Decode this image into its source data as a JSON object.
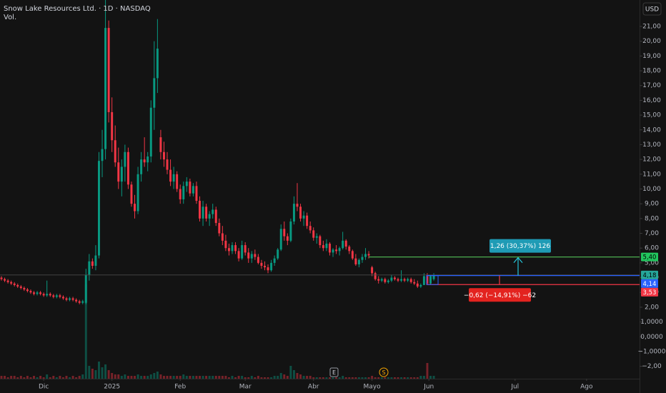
{
  "chart_data": {
    "type": "candlestick",
    "title": "Snow Lake Resources Ltd. · 1D · NASDAQ",
    "volume_label": "Vol.",
    "currency": "USD",
    "up_color": "#089981",
    "down_color": "#f23645",
    "grid": false,
    "xlim": [
      -0.44,
      196.3
    ],
    "xticks": [
      {
        "value": 13,
        "label": "Dic"
      },
      {
        "value": 34,
        "label": "2025"
      },
      {
        "value": 55,
        "label": "Feb"
      },
      {
        "value": 75,
        "label": "Mar"
      },
      {
        "value": 96,
        "label": "Abr"
      },
      {
        "value": 114,
        "label": "Mayo"
      },
      {
        "value": 131.5,
        "label": "Jun"
      },
      {
        "value": 158,
        "label": "Jul"
      },
      {
        "value": 180,
        "label": "Ago"
      }
    ],
    "ylim": [
      -2.84,
      22.79
    ],
    "yticks": [
      {
        "value": 21,
        "label": "21,00"
      },
      {
        "value": 20,
        "label": "20,00"
      },
      {
        "value": 19,
        "label": "19,00"
      },
      {
        "value": 18,
        "label": "18,00"
      },
      {
        "value": 17,
        "label": "17,00"
      },
      {
        "value": 16,
        "label": "16,00"
      },
      {
        "value": 15,
        "label": "15,00"
      },
      {
        "value": 14,
        "label": "14,00"
      },
      {
        "value": 13,
        "label": "13,00"
      },
      {
        "value": 12,
        "label": "12,00"
      },
      {
        "value": 11,
        "label": "11,00"
      },
      {
        "value": 10,
        "label": "10,00"
      },
      {
        "value": 9,
        "label": "9,00"
      },
      {
        "value": 8,
        "label": "8,00"
      },
      {
        "value": 7,
        "label": "7,00"
      },
      {
        "value": 6,
        "label": "6,00"
      },
      {
        "value": 5,
        "label": "5,00"
      },
      {
        "value": 4,
        "label": "4,00"
      },
      {
        "value": 3,
        "label": "3,00"
      },
      {
        "value": 2,
        "label": "2,00"
      },
      {
        "value": 1,
        "label": "1,0000"
      },
      {
        "value": 0,
        "label": "0,0000"
      },
      {
        "value": -1,
        "label": "−1,0000"
      },
      {
        "value": -2,
        "label": "−2,00"
      }
    ],
    "vlim": [
      0,
      265
    ],
    "open": [
      4.0,
      3.9,
      3.8,
      3.7,
      3.6,
      3.5,
      3.4,
      3.3,
      3.2,
      3.1,
      3.0,
      2.9,
      3.0,
      2.9,
      2.8,
      2.9,
      2.8,
      2.7,
      2.8,
      2.7,
      2.6,
      2.5,
      2.6,
      2.5,
      2.4,
      2.3,
      2.3,
      4.2,
      5.1,
      4.8,
      5.5,
      11.9,
      12.7,
      20.9,
      15.2,
      13.3,
      11.8,
      10.5,
      11.5,
      12.5,
      10.3,
      9.0,
      8.5,
      11.0,
      12.0,
      11.8,
      12.2,
      15.5,
      17.5,
      13.5,
      12.5,
      12.0,
      11.3,
      10.5,
      11.0,
      10.0,
      9.3,
      10.2,
      10.5,
      9.7,
      10.2,
      9.2,
      8.0,
      8.8,
      8.0,
      8.3,
      8.6,
      7.7,
      7.0,
      6.5,
      6.0,
      5.8,
      6.2,
      5.8,
      5.3,
      6.2,
      5.7,
      5.3,
      5.6,
      5.4,
      5.0,
      4.8,
      4.7,
      4.5,
      5.0,
      5.3,
      5.9,
      7.3,
      6.8,
      6.5,
      7.8,
      9.0,
      8.8,
      8.0,
      8.2,
      7.5,
      7.2,
      6.7,
      6.8,
      6.2,
      6.0,
      6.3,
      5.7,
      5.9,
      5.8,
      6.0,
      6.5,
      6.1,
      5.8,
      5.3,
      4.9,
      5.2,
      5.4,
      5.6,
      4.7,
      4.3,
      3.9,
      3.8,
      3.9,
      3.7,
      3.8,
      4.0,
      3.9,
      3.8,
      3.9,
      3.8,
      3.9,
      3.7,
      3.6,
      3.4,
      3.5,
      4.1,
      3.6,
      3.9
    ],
    "high": [
      4.1,
      4.0,
      3.9,
      3.8,
      3.7,
      3.6,
      3.5,
      3.4,
      3.3,
      3.2,
      3.1,
      3.1,
      3.1,
      3.0,
      3.8,
      3.0,
      2.9,
      2.9,
      2.9,
      2.8,
      2.7,
      2.7,
      2.7,
      2.6,
      2.5,
      2.5,
      4.6,
      5.6,
      5.3,
      6.2,
      12.5,
      14.0,
      22.8,
      21.4,
      16.2,
      14.3,
      12.8,
      12.0,
      13.0,
      12.8,
      10.5,
      9.6,
      11.5,
      12.5,
      13.5,
      12.5,
      16.0,
      20.0,
      21.5,
      14.0,
      13.2,
      12.5,
      12.0,
      11.5,
      11.2,
      10.3,
      10.5,
      10.8,
      10.7,
      10.4,
      10.5,
      9.5,
      9.2,
      9.0,
      8.5,
      9.0,
      8.8,
      8.0,
      7.5,
      6.9,
      6.3,
      6.4,
      6.4,
      6.0,
      6.5,
      6.4,
      6.0,
      5.8,
      5.9,
      5.6,
      5.2,
      5.1,
      4.9,
      5.2,
      5.5,
      6.0,
      7.6,
      7.8,
      7.0,
      8.0,
      9.5,
      10.4,
      9.0,
      8.5,
      8.4,
      7.8,
      7.4,
      7.0,
      6.9,
      6.5,
      6.6,
      6.4,
      6.0,
      6.2,
      6.1,
      7.1,
      6.6,
      6.2,
      5.9,
      5.6,
      5.3,
      5.6,
      6.0,
      5.8,
      4.8,
      4.4,
      4.1,
      4.0,
      4.0,
      3.9,
      4.2,
      4.1,
      4.0,
      4.5,
      4.0,
      4.0,
      4.0,
      3.9,
      3.8,
      3.6,
      4.3,
      4.3,
      4.2,
      4.3
    ],
    "low": [
      3.8,
      3.7,
      3.6,
      3.5,
      3.4,
      3.3,
      3.2,
      3.1,
      3.0,
      2.9,
      2.8,
      2.8,
      2.8,
      2.7,
      2.7,
      2.7,
      2.6,
      2.6,
      2.6,
      2.5,
      2.4,
      2.4,
      2.4,
      2.3,
      2.2,
      2.2,
      2.2,
      3.8,
      4.6,
      4.5,
      5.3,
      10.8,
      12.0,
      14.5,
      12.5,
      11.5,
      10.0,
      9.5,
      10.5,
      10.0,
      8.8,
      8.0,
      8.3,
      10.5,
      11.5,
      11.2,
      11.8,
      14.0,
      16.5,
      12.0,
      11.5,
      11.0,
      10.2,
      10.0,
      9.8,
      9.0,
      9.0,
      9.8,
      9.5,
      9.5,
      9.0,
      7.8,
      7.5,
      7.8,
      7.5,
      8.0,
      7.5,
      6.8,
      6.2,
      5.8,
      5.5,
      5.6,
      5.6,
      5.1,
      5.2,
      5.5,
      5.0,
      5.0,
      5.2,
      4.9,
      4.6,
      4.5,
      4.3,
      4.4,
      4.8,
      5.2,
      5.8,
      6.5,
      6.2,
      6.4,
      7.6,
      8.5,
      7.8,
      7.5,
      7.3,
      7.0,
      6.5,
      6.3,
      6.0,
      5.8,
      5.8,
      5.5,
      5.4,
      5.6,
      5.5,
      5.9,
      5.9,
      5.6,
      5.2,
      4.8,
      4.7,
      5.0,
      5.2,
      5.3,
      4.1,
      3.8,
      3.6,
      3.7,
      3.6,
      3.6,
      3.7,
      3.8,
      3.7,
      3.7,
      3.7,
      3.7,
      3.6,
      3.5,
      3.3,
      3.3,
      3.5,
      3.5,
      3.5,
      3.8
    ],
    "close": [
      3.9,
      3.8,
      3.7,
      3.6,
      3.5,
      3.4,
      3.3,
      3.2,
      3.1,
      3.0,
      2.9,
      3.0,
      2.9,
      2.8,
      2.9,
      2.8,
      2.7,
      2.8,
      2.7,
      2.6,
      2.5,
      2.6,
      2.5,
      2.4,
      2.3,
      2.4,
      4.2,
      5.1,
      4.8,
      5.5,
      11.9,
      12.7,
      20.9,
      15.2,
      13.3,
      11.8,
      10.5,
      11.5,
      12.5,
      10.3,
      9.0,
      8.5,
      11.0,
      12.0,
      11.8,
      12.2,
      15.5,
      17.5,
      19.5,
      12.5,
      12.0,
      11.3,
      10.5,
      11.0,
      10.0,
      9.3,
      10.2,
      10.5,
      9.7,
      10.2,
      9.2,
      8.0,
      8.8,
      8.0,
      8.3,
      8.6,
      7.7,
      7.0,
      6.5,
      6.0,
      5.8,
      6.2,
      5.8,
      5.3,
      6.2,
      5.7,
      5.3,
      5.6,
      5.4,
      5.0,
      4.8,
      4.7,
      4.5,
      5.0,
      5.3,
      5.9,
      7.3,
      6.8,
      6.5,
      7.8,
      9.0,
      8.8,
      8.0,
      8.2,
      7.5,
      7.2,
      6.7,
      6.8,
      6.2,
      6.0,
      6.3,
      5.7,
      5.9,
      5.8,
      6.0,
      6.5,
      6.1,
      5.8,
      5.3,
      4.9,
      5.2,
      5.4,
      5.6,
      5.5,
      4.3,
      3.9,
      3.8,
      3.9,
      3.7,
      3.8,
      4.0,
      3.9,
      3.8,
      3.9,
      3.8,
      3.9,
      3.7,
      3.6,
      3.4,
      3.5,
      4.1,
      3.6,
      4.1,
      4.18
    ],
    "volume": [
      2,
      2,
      1,
      2,
      2,
      1,
      2,
      1,
      2,
      1,
      2,
      1,
      2,
      1,
      3,
      1,
      2,
      1,
      2,
      1,
      2,
      1,
      2,
      1,
      2,
      3,
      66,
      9,
      7,
      6,
      12,
      8,
      10,
      6,
      4,
      3,
      3,
      2,
      3,
      2,
      2,
      2,
      3,
      2,
      2,
      2,
      3,
      4,
      5,
      3,
      2,
      2,
      2,
      2,
      2,
      2,
      3,
      2,
      2,
      2,
      2,
      2,
      2,
      2,
      2,
      2,
      2,
      2,
      2,
      2,
      1,
      2,
      1,
      2,
      2,
      1,
      1,
      2,
      1,
      2,
      1,
      1,
      1,
      1,
      2,
      2,
      4,
      3,
      2,
      9,
      6,
      4,
      3,
      2,
      2,
      2,
      1,
      1,
      1,
      1,
      1,
      1,
      1,
      1,
      1,
      2,
      1,
      1,
      1,
      1,
      1,
      1,
      1,
      1,
      2,
      1,
      1,
      1,
      1,
      1,
      1,
      1,
      1,
      1,
      1,
      1,
      1,
      1,
      1,
      2,
      2,
      11,
      2,
      2
    ],
    "last_price": {
      "value": 4.18,
      "label": "4,18"
    },
    "position": {
      "entry": {
        "value": 4.14,
        "label": "4,14"
      },
      "target": {
        "value": 5.4,
        "label": "5,40"
      },
      "stop": {
        "value": 3.53,
        "label": "3,53"
      },
      "profit_label": "1,26 (30,37%) 126",
      "loss_label": "−0,62 (−14,91%) −62"
    },
    "events": [
      "E",
      "S"
    ]
  }
}
